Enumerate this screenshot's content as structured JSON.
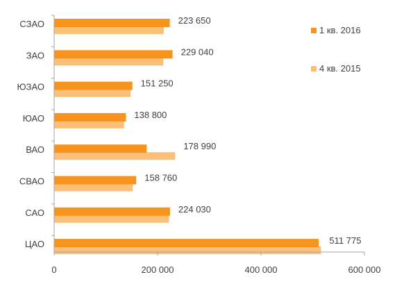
{
  "chart_data": {
    "type": "bar",
    "orientation": "horizontal",
    "categories": [
      "СЗАО",
      "ЗАО",
      "ЮЗАО",
      "ЮАО",
      "ВАО",
      "СВАО",
      "САО",
      "ЦАО"
    ],
    "series": [
      {
        "name": "1 кв. 2016",
        "color": "#f7941d",
        "values": [
          223650,
          229040,
          151250,
          138800,
          178990,
          158760,
          224030,
          511775
        ],
        "labels": [
          "223 650",
          "229 040",
          "151 250",
          "138 800",
          "178 990",
          "158 760",
          "224 030",
          "511 775"
        ]
      },
      {
        "name": "4 кв. 2015",
        "color": "#fbbf78",
        "values": [
          212000,
          211000,
          148000,
          135000,
          234000,
          152000,
          222000,
          516000
        ]
      }
    ],
    "xlim": [
      0,
      600000
    ],
    "xticks": [
      0,
      200000,
      400000,
      600000
    ],
    "xtick_labels": [
      "0",
      "200 000",
      "400 000",
      "600 000"
    ],
    "grid": false,
    "legend_position": "right"
  }
}
